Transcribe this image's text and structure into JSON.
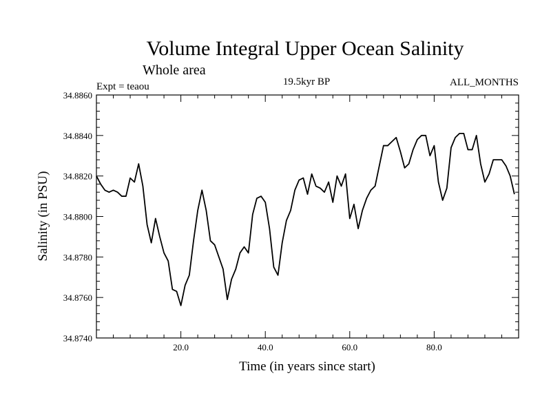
{
  "chart_data": {
    "type": "line",
    "title": "Volume Integral Upper Ocean Salinity",
    "subtitle": "Whole area",
    "experiment_label": "Expt = teaou",
    "period_label": "19.5kyr BP",
    "months_label": "ALL_MONTHS",
    "xlabel": "Time (in years since start)",
    "ylabel": "Salinity (in PSU)",
    "xlim": [
      0,
      100
    ],
    "ylim": [
      34.874,
      34.886
    ],
    "x_ticks": [
      20,
      40,
      60,
      80
    ],
    "x_tick_labels": [
      "20.0",
      "40.0",
      "60.0",
      "80.0"
    ],
    "y_ticks": [
      34.874,
      34.876,
      34.878,
      34.88,
      34.882,
      34.884,
      34.886
    ],
    "y_tick_labels": [
      "34.8740",
      "34.8760",
      "34.8780",
      "34.8800",
      "34.8820",
      "34.8840",
      "34.8860"
    ],
    "grid": false,
    "series": [
      {
        "name": "Salinity",
        "x": [
          0,
          1,
          2,
          3,
          4,
          5,
          6,
          7,
          8,
          9,
          10,
          11,
          12,
          13,
          14,
          15,
          16,
          17,
          18,
          19,
          20,
          21,
          22,
          23,
          24,
          25,
          26,
          27,
          28,
          29,
          30,
          31,
          32,
          33,
          34,
          35,
          36,
          37,
          38,
          39,
          40,
          41,
          42,
          43,
          44,
          45,
          46,
          47,
          48,
          49,
          50,
          51,
          52,
          53,
          54,
          55,
          56,
          57,
          58,
          59,
          60,
          61,
          62,
          63,
          64,
          65,
          66,
          67,
          68,
          69,
          70,
          71,
          72,
          73,
          74,
          75,
          76,
          77,
          78,
          79,
          80,
          81,
          82,
          83,
          84,
          85,
          86,
          87,
          88,
          89,
          90,
          91,
          92,
          93,
          94,
          95,
          96,
          97,
          98,
          99
        ],
        "values": [
          34.882,
          34.8816,
          34.8813,
          34.8812,
          34.8813,
          34.8812,
          34.881,
          34.881,
          34.8819,
          34.8817,
          34.8826,
          34.8815,
          34.8796,
          34.8787,
          34.8799,
          34.879,
          34.8782,
          34.8778,
          34.8764,
          34.8763,
          34.8756,
          34.8766,
          34.8771,
          34.8788,
          34.8803,
          34.8813,
          34.8803,
          34.8788,
          34.8786,
          34.878,
          34.8774,
          34.8759,
          34.8769,
          34.8774,
          34.8782,
          34.8785,
          34.8782,
          34.8801,
          34.8809,
          34.881,
          34.8807,
          34.8794,
          34.8775,
          34.8771,
          34.8787,
          34.8798,
          34.8803,
          34.8813,
          34.8818,
          34.8819,
          34.8811,
          34.8821,
          34.8815,
          34.8814,
          34.8812,
          34.8817,
          34.8807,
          34.882,
          34.8815,
          34.8821,
          34.8799,
          34.8806,
          34.8794,
          34.8803,
          34.8809,
          34.8813,
          34.8815,
          34.8825,
          34.8835,
          34.8835,
          34.8837,
          34.8839,
          34.8832,
          34.8824,
          34.8826,
          34.8833,
          34.8838,
          34.884,
          34.884,
          34.883,
          34.8835,
          34.8817,
          34.8808,
          34.8814,
          34.8834,
          34.8839,
          34.8841,
          34.8841,
          34.8833,
          34.8833,
          34.884,
          34.8826,
          34.8817,
          34.8821,
          34.8828,
          34.8828,
          34.8828,
          34.8825,
          34.882,
          34.8811
        ]
      }
    ]
  }
}
